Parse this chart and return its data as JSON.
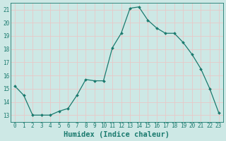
{
  "xlabel": "Humidex (Indice chaleur)",
  "x": [
    0,
    1,
    2,
    3,
    4,
    5,
    6,
    7,
    8,
    9,
    10,
    11,
    12,
    13,
    14,
    15,
    16,
    17,
    18,
    19,
    20,
    21,
    22,
    23
  ],
  "y": [
    15.2,
    14.5,
    13.0,
    13.0,
    13.0,
    13.3,
    13.5,
    14.5,
    15.7,
    15.6,
    15.6,
    18.1,
    19.2,
    21.1,
    21.2,
    20.2,
    19.6,
    19.2,
    19.2,
    18.5,
    17.6,
    16.5,
    15.0,
    13.2
  ],
  "line_color": "#1a7a6e",
  "marker_color": "#1a7a6e",
  "bg_color": "#cde8e5",
  "grid_color": "#e8c8c8",
  "tick_color": "#1a7a6e",
  "label_color": "#1a7a6e",
  "ylim": [
    12.5,
    21.5
  ],
  "xlim": [
    -0.5,
    23.5
  ],
  "yticks": [
    13,
    14,
    15,
    16,
    17,
    18,
    19,
    20,
    21
  ],
  "xtick_labels": [
    "0",
    "1",
    "2",
    "3",
    "4",
    "5",
    "6",
    "7",
    "8",
    "9",
    "10",
    "11",
    "12",
    "13",
    "14",
    "15",
    "16",
    "17",
    "18",
    "19",
    "20",
    "21",
    "22",
    "23"
  ],
  "axis_fontsize": 6.5,
  "tick_fontsize": 5.5,
  "xlabel_fontsize": 7.5
}
